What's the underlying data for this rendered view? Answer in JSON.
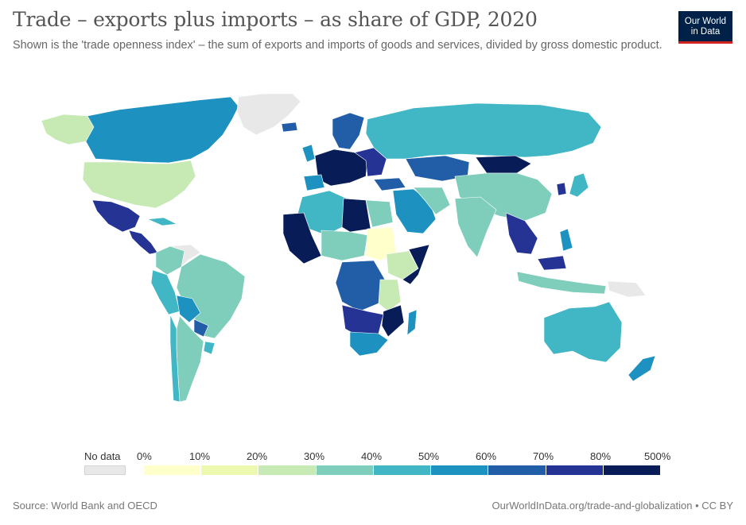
{
  "header": {
    "title": "Trade – exports plus imports – as share of GDP, 2020",
    "subtitle": "Shown is the 'trade openness index' – the sum of exports and imports of goods and services, divided by gross domestic product."
  },
  "logo": {
    "line1": "Our World",
    "line2": "in Data",
    "bg_color": "#002147",
    "accent_color": "#ce261e"
  },
  "legend": {
    "no_data_label": "No data",
    "no_data_color": "#e8e8e8",
    "ticks": [
      "0%",
      "10%",
      "20%",
      "30%",
      "40%",
      "50%",
      "60%",
      "70%",
      "80%",
      "500%"
    ],
    "colors": [
      "#ffffcc",
      "#edf8b1",
      "#c7e9b4",
      "#7fcdbb",
      "#41b6c4",
      "#1d91c0",
      "#225ea8",
      "#253494",
      "#081d58"
    ]
  },
  "footer": {
    "source": "Source: World Bank and OECD",
    "link": "OurWorldInData.org/trade-and-globalization • CC BY"
  }
}
